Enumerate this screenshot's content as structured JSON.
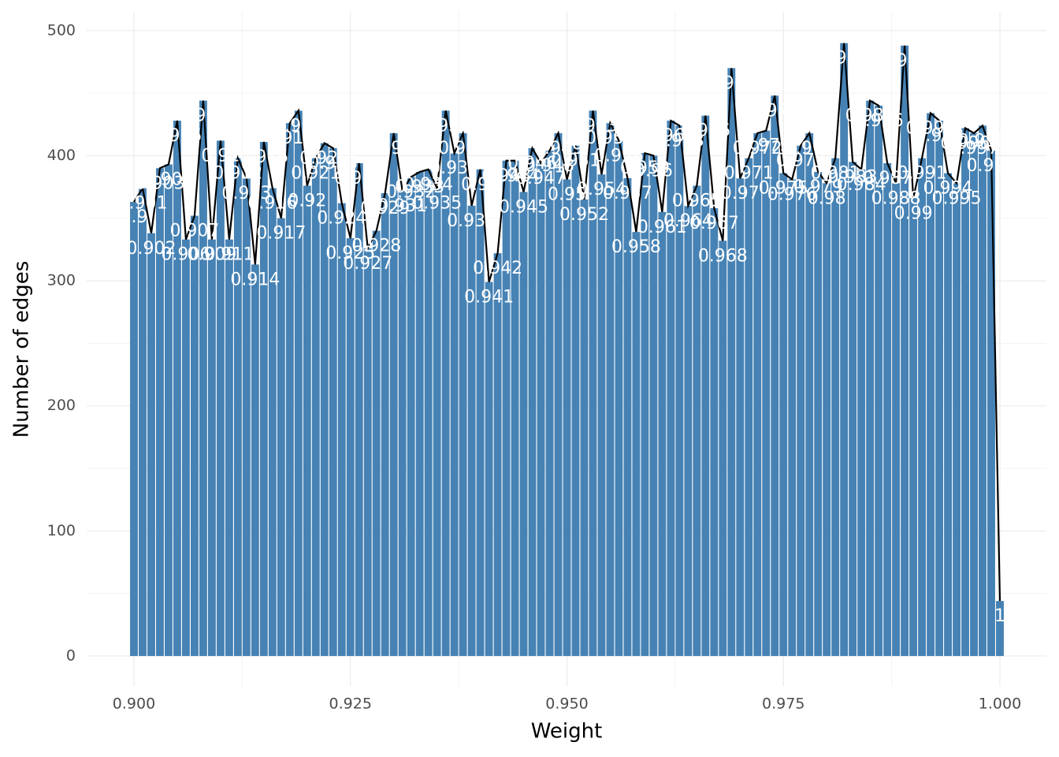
{
  "chart_data": {
    "type": "bar",
    "x_label": "Weight",
    "y_label": "Number of edges",
    "x": [
      0.9,
      0.901,
      0.902,
      0.903,
      0.904,
      0.905,
      0.906,
      0.907,
      0.908,
      0.909,
      0.91,
      0.911,
      0.912,
      0.913,
      0.914,
      0.915,
      0.916,
      0.917,
      0.918,
      0.919,
      0.92,
      0.921,
      0.922,
      0.923,
      0.924,
      0.925,
      0.926,
      0.927,
      0.928,
      0.929,
      0.93,
      0.931,
      0.932,
      0.933,
      0.934,
      0.935,
      0.936,
      0.937,
      0.938,
      0.939,
      0.94,
      0.941,
      0.942,
      0.943,
      0.944,
      0.945,
      0.946,
      0.947,
      0.948,
      0.949,
      0.95,
      0.951,
      0.952,
      0.953,
      0.954,
      0.955,
      0.956,
      0.957,
      0.958,
      0.959,
      0.96,
      0.961,
      0.962,
      0.963,
      0.964,
      0.965,
      0.966,
      0.967,
      0.968,
      0.969,
      0.97,
      0.971,
      0.972,
      0.973,
      0.974,
      0.975,
      0.976,
      0.977,
      0.978,
      0.979,
      0.98,
      0.981,
      0.982,
      0.983,
      0.984,
      0.985,
      0.986,
      0.987,
      0.988,
      0.989,
      0.99,
      0.991,
      0.992,
      0.993,
      0.994,
      0.995,
      0.996,
      0.997,
      0.998,
      0.999,
      1
    ],
    "values": [
      363,
      374,
      338,
      390,
      393,
      428,
      333,
      352,
      444,
      333,
      412,
      333,
      398,
      382,
      313,
      411,
      374,
      350,
      426,
      436,
      376,
      398,
      410,
      406,
      362,
      334,
      394,
      326,
      340,
      370,
      418,
      372,
      383,
      387,
      389,
      374,
      436,
      402,
      418,
      360,
      389,
      299,
      322,
      396,
      396,
      371,
      406,
      394,
      404,
      418,
      381,
      408,
      365,
      436,
      385,
      426,
      412,
      382,
      339,
      402,
      400,
      355,
      428,
      424,
      360,
      376,
      432,
      358,
      332,
      470,
      382,
      398,
      418,
      420,
      448,
      386,
      381,
      408,
      418,
      387,
      378,
      398,
      490,
      395,
      389,
      444,
      440,
      394,
      378,
      488,
      366,
      398,
      434,
      428,
      386,
      378,
      422,
      418,
      424,
      404,
      44
    ],
    "color": "#4682b4",
    "line_color": "#000000",
    "label_color": "#ffffff",
    "xlim": [
      0.89454,
      1.00537
    ],
    "ylim": [
      -24,
      515
    ],
    "xticks": [
      {
        "value": 0.9,
        "label": "0.900"
      },
      {
        "value": 0.925,
        "label": "0.925"
      },
      {
        "value": 0.95,
        "label": "0.950"
      },
      {
        "value": 0.975,
        "label": "0.975"
      },
      {
        "value": 1.0,
        "label": "1.000"
      }
    ],
    "yticks": [
      0,
      100,
      200,
      300,
      400,
      500
    ],
    "grid": true
  }
}
